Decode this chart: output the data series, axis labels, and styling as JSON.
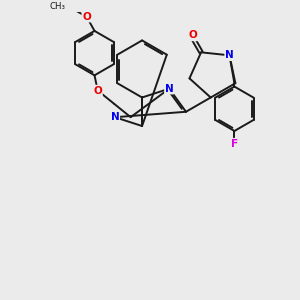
{
  "bg_color": "#ebebeb",
  "bond_color": "#1a1a1a",
  "N_color": "#0000ee",
  "O_color": "#ee0000",
  "F_color": "#dd00dd",
  "lw": 1.4,
  "dbo": 0.055,
  "figsize": [
    3.0,
    3.0
  ],
  "dpi": 100,
  "xlim": [
    -2.5,
    6.0
  ],
  "ylim": [
    -4.5,
    4.5
  ]
}
